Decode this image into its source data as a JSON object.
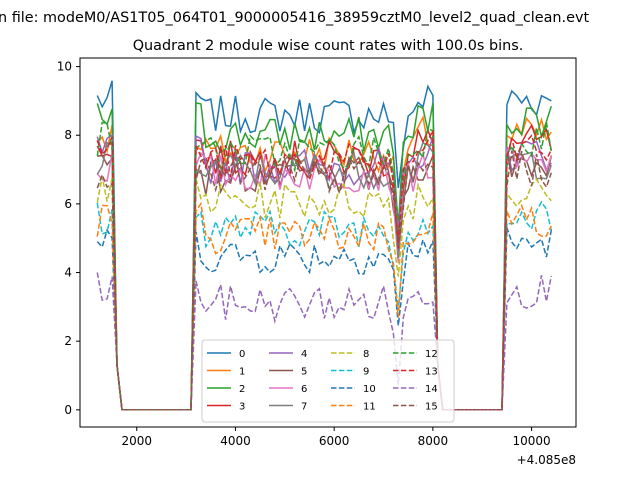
{
  "chart_data": {
    "type": "line",
    "suptitle": "n file: modeM0/AS1T05_064T01_9000005416_38959cztM0_level2_quad_clean.evt",
    "title": "Quadrant 2 module wise count rates with 100.0s bins.",
    "xlabel": "",
    "ylabel": "",
    "x_offset_label": "+4.085e8",
    "xlim": [
      850,
      10900
    ],
    "ylim": [
      -0.5,
      10.25
    ],
    "xticks": [
      2000,
      4000,
      6000,
      8000,
      10000
    ],
    "yticks": [
      0,
      2,
      4,
      6,
      8,
      10
    ],
    "grid": false,
    "legend_placement": "lower center, 4 columns",
    "segments": [
      {
        "x_start": 1200,
        "x_end": 1500
      },
      {
        "x_start": 3200,
        "x_end": 8000
      },
      {
        "x_start": 9500,
        "x_end": 10400
      }
    ],
    "series": [
      {
        "name": "0",
        "color": "#1f77b4",
        "dashed": false,
        "level": 8.6,
        "edge": 9.5
      },
      {
        "name": "1",
        "color": "#ff7f0e",
        "dashed": false,
        "level": 7.5,
        "edge": 8.5
      },
      {
        "name": "2",
        "color": "#2ca02c",
        "dashed": false,
        "level": 8.0,
        "edge": 9.0
      },
      {
        "name": "3",
        "color": "#d62728",
        "dashed": false,
        "level": 7.3,
        "edge": 8.2
      },
      {
        "name": "4",
        "color": "#9467bd",
        "dashed": false,
        "level": 7.1,
        "edge": 7.9
      },
      {
        "name": "5",
        "color": "#8c564b",
        "dashed": false,
        "level": 6.8,
        "edge": 7.6
      },
      {
        "name": "6",
        "color": "#e377c2",
        "dashed": false,
        "level": 6.9,
        "edge": 7.3
      },
      {
        "name": "7",
        "color": "#7f7f7f",
        "dashed": false,
        "level": 7.0,
        "edge": 7.5
      },
      {
        "name": "8",
        "color": "#bcbd22",
        "dashed": true,
        "level": 6.1,
        "edge": 6.5
      },
      {
        "name": "9",
        "color": "#17becf",
        "dashed": true,
        "level": 5.3,
        "edge": 5.8
      },
      {
        "name": "10",
        "color": "#1f77b4",
        "dashed": true,
        "level": 4.5,
        "edge": 5.2
      },
      {
        "name": "11",
        "color": "#ff7f0e",
        "dashed": true,
        "level": 5.1,
        "edge": 6.0
      },
      {
        "name": "12",
        "color": "#2ca02c",
        "dashed": true,
        "level": 7.5,
        "edge": 8.3
      },
      {
        "name": "13",
        "color": "#d62728",
        "dashed": true,
        "level": 7.2,
        "edge": 8.0
      },
      {
        "name": "14",
        "color": "#9467bd",
        "dashed": true,
        "level": 3.1,
        "edge": 3.9
      },
      {
        "name": "15",
        "color": "#8c564b",
        "dashed": true,
        "level": 6.8,
        "edge": 7.2
      }
    ]
  }
}
